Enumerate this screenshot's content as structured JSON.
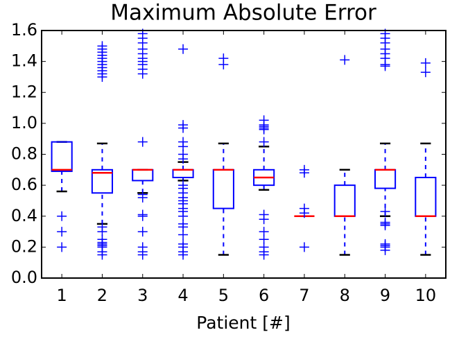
{
  "chart_data": {
    "type": "box",
    "title": "Maximum Absolute Error",
    "x_label": "Patient [#]",
    "categories": [
      "1",
      "2",
      "3",
      "4",
      "5",
      "6",
      "7",
      "8",
      "9",
      "10"
    ],
    "color": "#0000ff",
    "median_color": "#ff0000",
    "cap_color": "#000000",
    "ylim": [
      0,
      1.6
    ],
    "yticks": [
      {
        "value": 0,
        "label": "0.0"
      },
      {
        "value": 0.2,
        "label": "0.2"
      },
      {
        "value": 0.4,
        "label": "0.4"
      },
      {
        "value": 0.6,
        "label": "0.6"
      },
      {
        "value": 0.8,
        "label": "0.8"
      },
      {
        "value": 1,
        "label": "1.0"
      },
      {
        "value": 1.2,
        "label": "1.2"
      },
      {
        "value": 1.4,
        "label": "1.4"
      },
      {
        "value": 1.6,
        "label": "1.6"
      }
    ],
    "boxes": [
      {
        "whislo": 0.56,
        "q1": 0.69,
        "med": 0.7,
        "q3": 0.88,
        "whishi": 0.88,
        "fliers": [
          0.4,
          0.3,
          0.2
        ]
      },
      {
        "whislo": 0.35,
        "q1": 0.55,
        "med": 0.68,
        "q3": 0.7,
        "whishi": 0.87,
        "fliers": [
          1.5,
          1.48,
          1.46,
          1.44,
          1.42,
          1.4,
          1.38,
          1.36,
          1.34,
          1.32,
          1.3,
          0.33,
          0.3,
          0.25,
          0.23,
          0.22,
          0.21,
          0.2,
          0.17,
          0.15
        ]
      },
      {
        "whislo": 0.55,
        "q1": 0.63,
        "med": 0.7,
        "q3": 0.7,
        "whishi": 0.7,
        "fliers": [
          1.58,
          1.55,
          1.52,
          1.48,
          1.45,
          1.42,
          1.4,
          1.38,
          1.35,
          1.32,
          0.88,
          0.54,
          0.52,
          0.41,
          0.4,
          0.3,
          0.2,
          0.17,
          0.15
        ]
      },
      {
        "whislo": 0.63,
        "q1": 0.65,
        "med": 0.7,
        "q3": 0.7,
        "whishi": 0.75,
        "fliers": [
          1.48,
          0.99,
          0.97,
          0.88,
          0.85,
          0.8,
          0.77,
          0.6,
          0.58,
          0.55,
          0.52,
          0.5,
          0.48,
          0.45,
          0.43,
          0.4,
          0.35,
          0.33,
          0.28,
          0.22,
          0.2,
          0.17,
          0.15
        ]
      },
      {
        "whislo": 0.15,
        "q1": 0.45,
        "med": 0.7,
        "q3": 0.7,
        "whishi": 0.87,
        "fliers": [
          1.42,
          1.38
        ]
      },
      {
        "whislo": 0.57,
        "q1": 0.6,
        "med": 0.65,
        "q3": 0.7,
        "whishi": 0.85,
        "fliers": [
          1.02,
          0.99,
          0.98,
          0.97,
          0.96,
          0.88,
          0.41,
          0.38,
          0.3,
          0.25,
          0.2,
          0.17,
          0.15
        ]
      },
      {
        "whislo": 0.4,
        "q1": 0.4,
        "med": 0.4,
        "q3": 0.4,
        "whishi": 0.4,
        "fliers": [
          0.7,
          0.68,
          0.45,
          0.42,
          0.2
        ]
      },
      {
        "whislo": 0.15,
        "q1": 0.4,
        "med": 0.4,
        "q3": 0.6,
        "whishi": 0.7,
        "fliers": [
          1.41
        ]
      },
      {
        "whislo": 0.4,
        "q1": 0.58,
        "med": 0.7,
        "q3": 0.7,
        "whishi": 0.87,
        "fliers": [
          1.58,
          1.55,
          1.52,
          1.48,
          1.45,
          1.42,
          1.38,
          1.37,
          0.43,
          0.36,
          0.35,
          0.34,
          0.22,
          0.21,
          0.2,
          0.18
        ]
      },
      {
        "whislo": 0.15,
        "q1": 0.4,
        "med": 0.4,
        "q3": 0.65,
        "whishi": 0.87,
        "fliers": [
          1.39,
          1.33
        ]
      }
    ]
  }
}
